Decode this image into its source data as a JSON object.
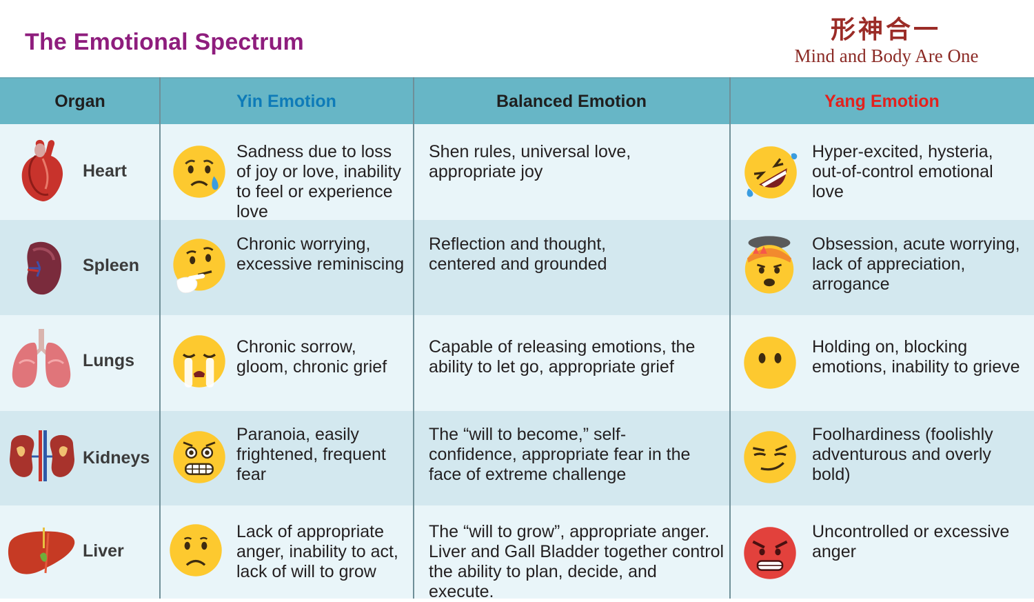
{
  "title": "The Emotional Spectrum",
  "brand": {
    "chinese": "形神合一",
    "english": "Mind and Body Are One"
  },
  "colors": {
    "title": "#8e1d7d",
    "header_bg": "#67b6c6",
    "yin": "#0e7bb8",
    "yang": "#e3211d",
    "brand": "#9b2c27"
  },
  "headers": {
    "organ": "Organ",
    "yin": "Yin Emotion",
    "balanced": "Balanced Emotion",
    "yang": "Yang Emotion"
  },
  "rows": [
    {
      "organ": "Heart",
      "organ_icon": "heart-organ-icon",
      "yin": "Sadness due to loss of joy or love, inability to feel or experience love",
      "yin_icon": "sad-tear-emoji-icon",
      "balanced": "Shen rules, universal love, appropriate joy",
      "yang": "Hyper-excited, hysteria, out-of-control emotional love",
      "yang_icon": "rolling-laughing-emoji-icon"
    },
    {
      "organ": "Spleen",
      "organ_icon": "spleen-organ-icon",
      "yin": "Chronic worrying, excessive reminiscing",
      "yin_icon": "thinking-emoji-icon",
      "balanced": "Reflection and thought, centered and grounded",
      "yang": "Obsession, acute worrying, lack of appreciation, arrogance",
      "yang_icon": "exploding-head-emoji-icon"
    },
    {
      "organ": "Lungs",
      "organ_icon": "lungs-organ-icon",
      "yin": "Chronic sorrow, gloom, chronic grief",
      "yin_icon": "crying-emoji-icon",
      "balanced": "Capable of releasing emotions, the ability to let go, appropriate grief",
      "yang": "Holding on, blocking emotions, inability to grieve",
      "yang_icon": "no-mouth-emoji-icon"
    },
    {
      "organ": "Kidneys",
      "organ_icon": "kidneys-organ-icon",
      "yin": "Paranoia, easily frightened, frequent fear",
      "yin_icon": "grimacing-fear-emoji-icon",
      "balanced": "The “will to become,” self-confidence, appropriate fear in the face of extreme challenge",
      "yang": "Foolhardiness (foolishly adventurous and overly bold)",
      "yang_icon": "smirk-emoji-icon"
    },
    {
      "organ": "Liver",
      "organ_icon": "liver-organ-icon",
      "yin": "Lack of appropriate anger, inability to act, lack of will to grow",
      "yin_icon": "frowning-emoji-icon",
      "balanced": "The “will to grow”, appropriate anger. Liver and Gall Bladder together control the ability to plan, decide, and execute.",
      "yang": "Uncontrolled or excessive anger",
      "yang_icon": "angry-red-emoji-icon"
    }
  ]
}
